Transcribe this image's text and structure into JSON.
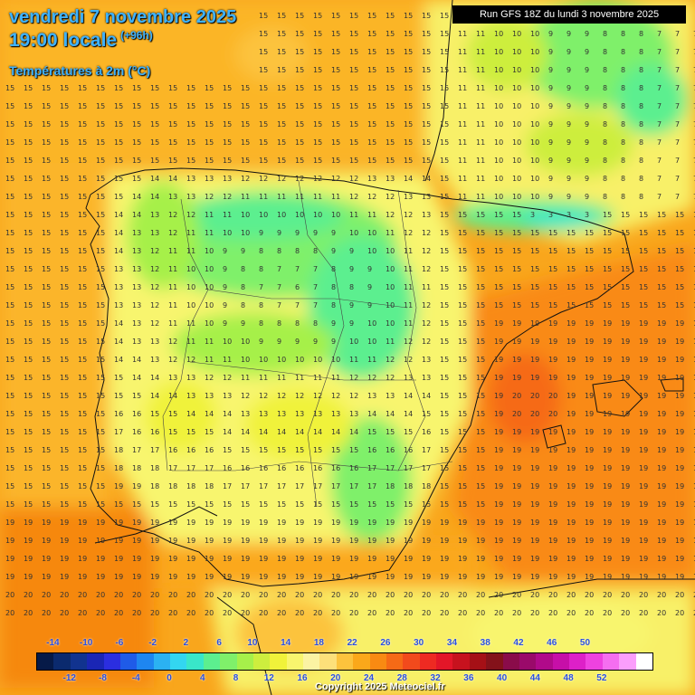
{
  "header": {
    "date_line": "vendredi 7 novembre 2025",
    "time_line": "19:00 locale",
    "lead_time": "(+96h)",
    "parameter": "Températures à 2m (°C)",
    "run_info": "Run GFS 18Z du lundi 3 novembre 2025"
  },
  "legend": {
    "top_labels": [
      "-14",
      "-10",
      "-6",
      "-2",
      "2",
      "6",
      "10",
      "14",
      "18",
      "22",
      "26",
      "30",
      "34",
      "38",
      "42",
      "46",
      "50"
    ],
    "bottom_labels": [
      "-12",
      "-8",
      "-4",
      "0",
      "4",
      "8",
      "12",
      "16",
      "20",
      "24",
      "28",
      "32",
      "36",
      "40",
      "44",
      "48",
      "52"
    ],
    "colors": [
      "#061a48",
      "#0b2a6e",
      "#11338f",
      "#1a26b5",
      "#2b2ee0",
      "#1f5be8",
      "#1e86f0",
      "#2bb2f2",
      "#33d6f0",
      "#39e6c9",
      "#5cef8f",
      "#7ff06a",
      "#a6f04a",
      "#cdee3e",
      "#f0f23a",
      "#f8f56e",
      "#fbf3a3",
      "#fde07a",
      "#fcc33d",
      "#fba81a",
      "#f98a12",
      "#f66a16",
      "#f24a1c",
      "#ee2a22",
      "#e31628",
      "#c7121e",
      "#a51016",
      "#84121a",
      "#8a0c4a",
      "#9a0a6a",
      "#b00a8a",
      "#c60fa8",
      "#dd20c8",
      "#ee42e0",
      "#f56ef0",
      "#fb9efb",
      "#ffffff"
    ]
  },
  "copyright": "Copyright 2025 Meteociel.fr"
}
